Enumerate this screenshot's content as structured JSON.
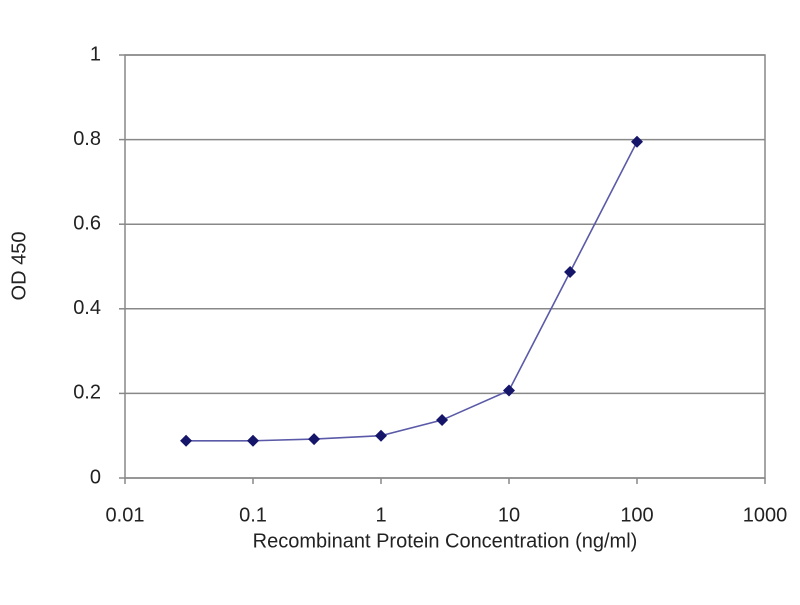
{
  "chart_data": {
    "type": "line",
    "x_label": "Recombinant Protein Concentration (ng/ml)",
    "y_label": "OD 450",
    "x": [
      0.03,
      0.1,
      0.3,
      1,
      3,
      10,
      30,
      100
    ],
    "series": [
      {
        "name": "OD 450",
        "color": "#5a5aa8",
        "marker_color": "#15156a",
        "values": [
          0.088,
          0.088,
          0.092,
          0.1,
          0.137,
          0.207,
          0.487,
          0.795
        ]
      }
    ],
    "xscale": "log",
    "xlim": [
      0.01,
      1000
    ],
    "xticks": [
      0.01,
      0.1,
      1,
      10,
      100,
      1000
    ],
    "ylim": [
      0,
      1
    ],
    "yticks": [
      0,
      0.2,
      0.4,
      0.6,
      0.8,
      1
    ],
    "grid": true
  }
}
